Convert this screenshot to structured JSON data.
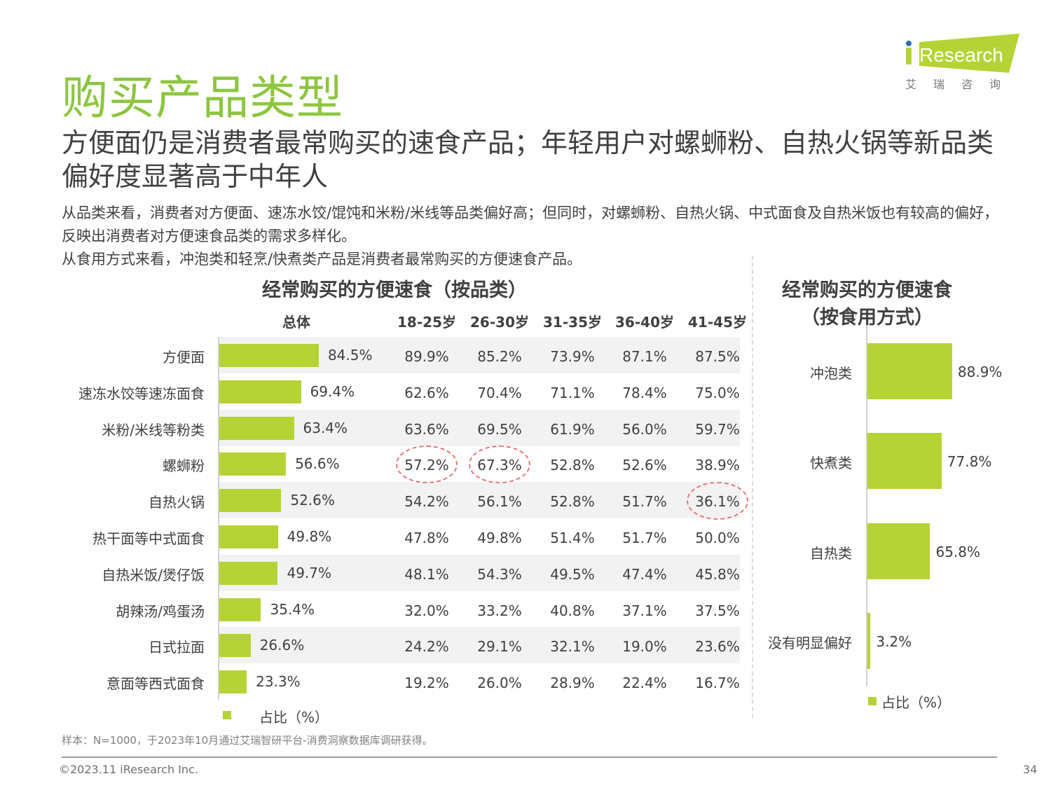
{
  "title": "购买产品类型",
  "subtitle": "方便面仍是消费者最常购买的速食产品；年轻用户对螺蛳粉、自热火锅等新品类偏好度显著高于中年人",
  "desc": [
    "从品类来看，消费者对方便面、速冻水饺/馄饨和米粉/米线等品类偏好高；但同时，对螺蛳粉、自热火锅、中式面食及自热米饭也有较高的偏好，反映出消费者对方便速食品类的需求多样化。",
    "从食用方式来看，冲泡类和轻烹/快煮类产品是消费者最常购买的方便速食产品。"
  ],
  "logo": {
    "text": "iResearch",
    "sub": "艾 瑞 咨 询"
  },
  "accent": "#b5d334",
  "chart_data": [
    {
      "type": "bar",
      "orientation": "horizontal",
      "title": "经常购买的方便速食（按品类）",
      "unit": "%",
      "legend": "占比（%）",
      "legend_position": "bottom",
      "total_header": "总体",
      "categories": [
        "方便面",
        "速冻水饺等速冻面食",
        "米粉/米线等粉类",
        "螺蛳粉",
        "自热火锅",
        "热干面等中式面食",
        "自热米饭/煲仔饭",
        "胡辣汤/鸡蛋汤",
        "日式拉面",
        "意面等西式面食"
      ],
      "values": [
        84.5,
        69.4,
        63.4,
        56.6,
        52.6,
        49.8,
        49.7,
        35.4,
        26.6,
        23.3
      ],
      "value_labels": [
        "84.5%",
        "69.4%",
        "63.4%",
        "56.6%",
        "52.6%",
        "49.8%",
        "49.7%",
        "35.4%",
        "26.6%",
        "23.3%"
      ],
      "table": {
        "columns": [
          "18-25岁",
          "26-30岁",
          "31-35岁",
          "36-40岁",
          "41-45岁"
        ],
        "rows": [
          [
            "89.9%",
            "85.2%",
            "73.9%",
            "87.1%",
            "87.5%"
          ],
          [
            "62.6%",
            "70.4%",
            "71.1%",
            "78.4%",
            "75.0%"
          ],
          [
            "63.6%",
            "69.5%",
            "61.9%",
            "56.0%",
            "59.7%"
          ],
          [
            "57.2%",
            "67.3%",
            "52.8%",
            "52.6%",
            "38.9%"
          ],
          [
            "54.2%",
            "56.1%",
            "52.8%",
            "51.7%",
            "36.1%"
          ],
          [
            "47.8%",
            "49.8%",
            "51.4%",
            "51.7%",
            "50.0%"
          ],
          [
            "48.1%",
            "54.3%",
            "49.5%",
            "47.4%",
            "45.8%"
          ],
          [
            "32.0%",
            "33.2%",
            "40.8%",
            "37.1%",
            "37.5%"
          ],
          [
            "24.2%",
            "29.1%",
            "32.1%",
            "19.0%",
            "23.6%"
          ],
          [
            "19.2%",
            "26.0%",
            "28.9%",
            "22.4%",
            "16.7%"
          ]
        ],
        "highlighted": [
          [
            3,
            0
          ],
          [
            3,
            1
          ],
          [
            4,
            4
          ]
        ]
      }
    },
    {
      "type": "bar",
      "orientation": "horizontal",
      "title": "经常购买的方便速食（按食用方式）",
      "title_lines": [
        "经常购买的方便速食",
        "（按食用方式）"
      ],
      "unit": "%",
      "legend": "占比（%）",
      "legend_position": "bottom",
      "categories": [
        "冲泡类",
        "快煮类",
        "自热类",
        "没有明显偏好"
      ],
      "values": [
        88.9,
        77.8,
        65.8,
        3.2
      ],
      "value_labels": [
        "88.9%",
        "77.8%",
        "65.8%",
        "3.2%"
      ]
    }
  ],
  "footer": {
    "note": "样本：N=1000，于2023年10月通过艾瑞智研平台-消费洞察数据库调研获得。",
    "copyright": "©2023.11 iResearch Inc.",
    "page": "34"
  }
}
